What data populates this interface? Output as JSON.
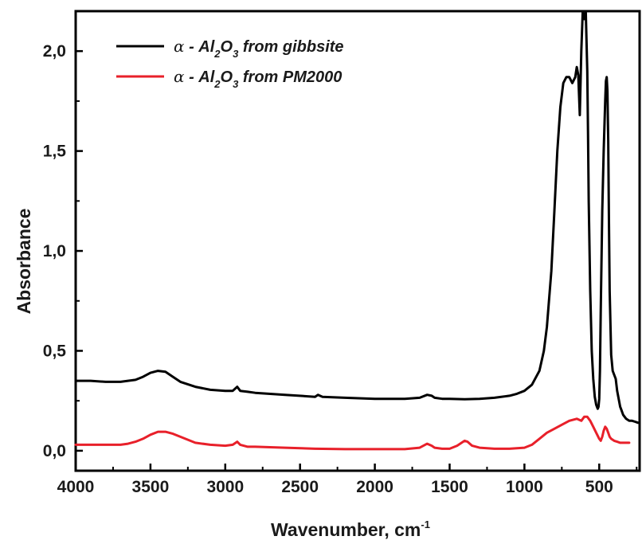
{
  "chart_data": {
    "type": "line",
    "xlabel": "Wavenumber, cm",
    "xlabel_sup": "-1",
    "ylabel": "Absorbance",
    "xlim": [
      4000,
      230
    ],
    "ylim": [
      -0.1,
      2.2
    ],
    "x_reversed": true,
    "xticks": [
      4000,
      3500,
      3000,
      2500,
      2000,
      1500,
      1000,
      500
    ],
    "xtick_labels": [
      "4000",
      "3500",
      "3000",
      "2500",
      "2000",
      "1500",
      "1000",
      "500"
    ],
    "yticks": [
      0.0,
      0.5,
      1.0,
      1.5,
      2.0
    ],
    "ytick_labels": [
      "0,0",
      "0,5",
      "1,0",
      "1,5",
      "2,0"
    ],
    "grid": false,
    "legend_position": "top-left",
    "series": [
      {
        "name": "from gibbsite",
        "legend": {
          "greek": "α",
          "dash": " - ",
          "chem": "Al",
          "sub1": "2",
          "chem2": "O",
          "sub2": "3",
          "rest": " from gibbsite"
        },
        "color": "#000000",
        "x": [
          4000,
          3900,
          3800,
          3700,
          3600,
          3550,
          3500,
          3450,
          3400,
          3350,
          3300,
          3200,
          3100,
          3000,
          2950,
          2920,
          2900,
          2850,
          2800,
          2600,
          2400,
          2380,
          2350,
          2200,
          2000,
          1800,
          1700,
          1650,
          1620,
          1600,
          1550,
          1500,
          1400,
          1300,
          1200,
          1100,
          1050,
          1000,
          950,
          900,
          870,
          850,
          820,
          800,
          780,
          760,
          740,
          720,
          700,
          680,
          660,
          650,
          640,
          630,
          620,
          610,
          600,
          590,
          580,
          575,
          570,
          560,
          550,
          540,
          530,
          520,
          510,
          505,
          500,
          495,
          490,
          480,
          470,
          460,
          455,
          450,
          445,
          440,
          435,
          430,
          420,
          410,
          400,
          390,
          380,
          370,
          360,
          350,
          340,
          330,
          320,
          300,
          280,
          260,
          240,
          230
        ],
        "values": [
          0.35,
          0.35,
          0.345,
          0.345,
          0.355,
          0.37,
          0.39,
          0.4,
          0.395,
          0.37,
          0.345,
          0.32,
          0.305,
          0.3,
          0.3,
          0.32,
          0.3,
          0.295,
          0.29,
          0.28,
          0.27,
          0.28,
          0.27,
          0.265,
          0.26,
          0.26,
          0.265,
          0.28,
          0.275,
          0.265,
          0.26,
          0.26,
          0.258,
          0.26,
          0.265,
          0.275,
          0.285,
          0.3,
          0.33,
          0.4,
          0.5,
          0.62,
          0.9,
          1.2,
          1.5,
          1.72,
          1.84,
          1.87,
          1.87,
          1.84,
          1.87,
          1.92,
          1.88,
          1.68,
          2.0,
          2.2,
          2.16,
          2.2,
          1.9,
          1.6,
          1.25,
          0.8,
          0.5,
          0.36,
          0.27,
          0.23,
          0.21,
          0.22,
          0.26,
          0.4,
          0.7,
          1.2,
          1.5,
          1.75,
          1.85,
          1.87,
          1.8,
          1.55,
          1.15,
          0.8,
          0.48,
          0.4,
          0.38,
          0.36,
          0.3,
          0.26,
          0.22,
          0.2,
          0.18,
          0.17,
          0.16,
          0.15,
          0.15,
          0.145,
          0.14,
          0.14
        ]
      },
      {
        "name": "from PM2000",
        "legend": {
          "greek": "α",
          "dash": " - ",
          "chem": "Al",
          "sub1": "2",
          "chem2": "O",
          "sub2": "3",
          "rest": " from PM2000"
        },
        "color": "#e8202a",
        "x": [
          4000,
          3900,
          3800,
          3700,
          3650,
          3600,
          3550,
          3500,
          3450,
          3400,
          3350,
          3300,
          3200,
          3100,
          3000,
          2950,
          2920,
          2900,
          2850,
          2800,
          2600,
          2400,
          2200,
          2000,
          1800,
          1700,
          1650,
          1620,
          1600,
          1550,
          1500,
          1450,
          1420,
          1400,
          1380,
          1350,
          1300,
          1200,
          1100,
          1000,
          950,
          900,
          850,
          800,
          750,
          700,
          650,
          620,
          600,
          580,
          560,
          540,
          520,
          500,
          490,
          480,
          470,
          460,
          450,
          440,
          430,
          420,
          400,
          380,
          360,
          340,
          320,
          300
        ],
        "values": [
          0.03,
          0.03,
          0.03,
          0.03,
          0.035,
          0.045,
          0.06,
          0.08,
          0.095,
          0.095,
          0.085,
          0.07,
          0.04,
          0.03,
          0.025,
          0.03,
          0.045,
          0.03,
          0.02,
          0.02,
          0.015,
          0.01,
          0.008,
          0.008,
          0.008,
          0.015,
          0.035,
          0.025,
          0.015,
          0.01,
          0.01,
          0.025,
          0.04,
          0.05,
          0.045,
          0.025,
          0.015,
          0.01,
          0.01,
          0.015,
          0.03,
          0.06,
          0.09,
          0.11,
          0.13,
          0.15,
          0.16,
          0.15,
          0.17,
          0.17,
          0.15,
          0.12,
          0.09,
          0.06,
          0.05,
          0.07,
          0.1,
          0.12,
          0.11,
          0.09,
          0.07,
          0.06,
          0.05,
          0.045,
          0.04,
          0.04,
          0.04,
          0.04
        ]
      }
    ]
  }
}
